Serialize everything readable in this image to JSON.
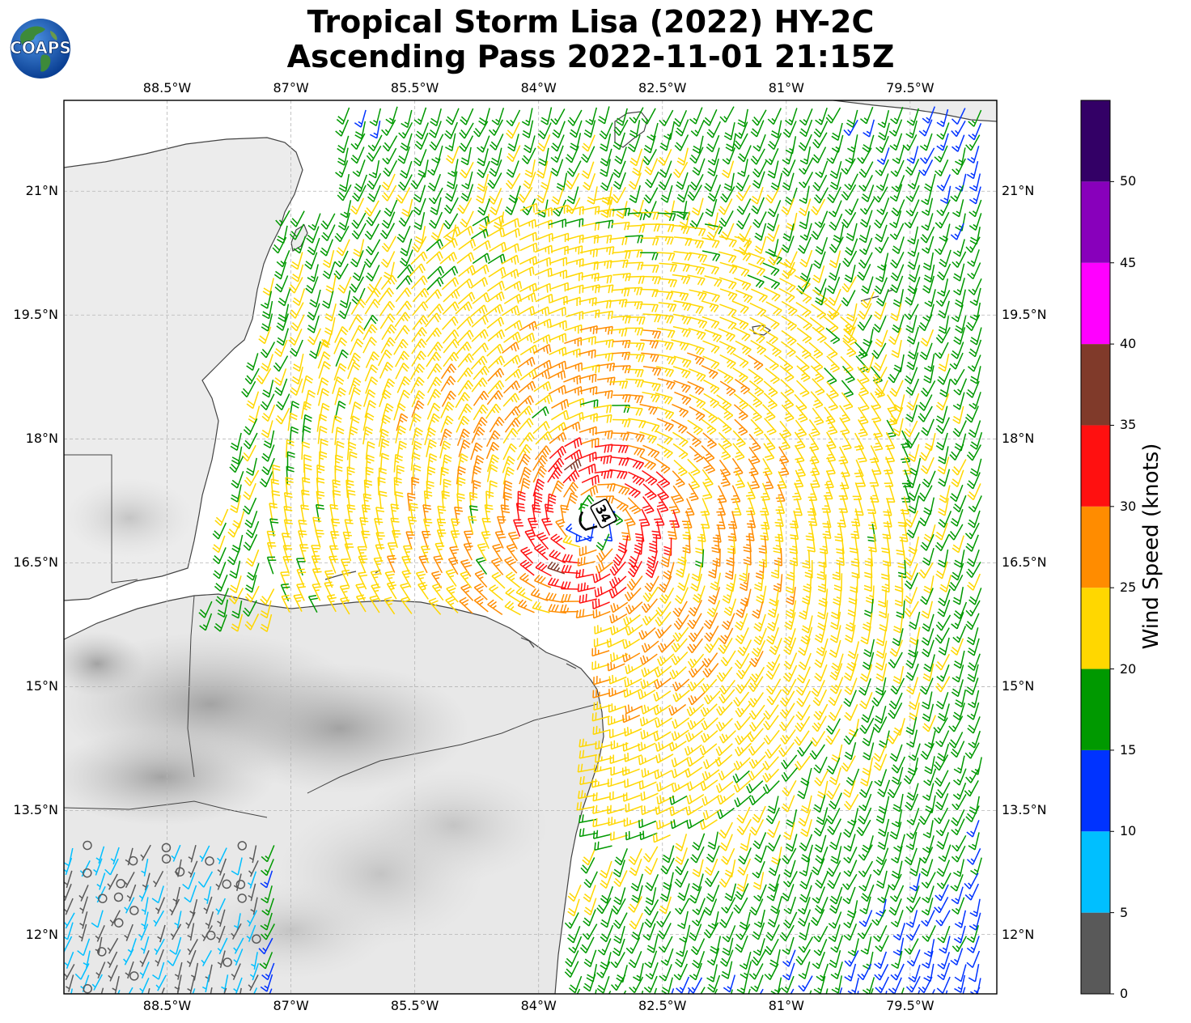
{
  "title_line1": "Tropical Storm Lisa (2022) HY-2C",
  "title_line2": "Ascending Pass 2022-11-01 21:15Z",
  "logo_text": "COAPS",
  "lon_labels": [
    "88.5°W",
    "87°W",
    "85.5°W",
    "84°W",
    "82.5°W",
    "81°W",
    "79.5°W"
  ],
  "lon_values": [
    -88.5,
    -87,
    -85.5,
    -84,
    -82.5,
    -81,
    -79.5
  ],
  "lat_labels": [
    "21°N",
    "19.5°N",
    "18°N",
    "16.5°N",
    "15°N",
    "13.5°N",
    "12°N"
  ],
  "lat_values": [
    21,
    19.5,
    18,
    16.5,
    15,
    13.5,
    12
  ],
  "map_extent": {
    "lon_min": -89.75,
    "lon_max": -78.45,
    "lat_min": 11.28,
    "lat_max": 22.1
  },
  "storm_center": {
    "lon": -83.35,
    "lat": 16.98,
    "label": "34"
  },
  "colorbar": {
    "title": "Wind Speed (knots)",
    "tick_labels": [
      "0",
      "5",
      "10",
      "15",
      "20",
      "25",
      "30",
      "35",
      "40",
      "45",
      "50"
    ],
    "range": [
      0,
      55
    ],
    "bins": [
      {
        "min": 0,
        "max": 5,
        "color": "#595959"
      },
      {
        "min": 5,
        "max": 10,
        "color": "#00bfff"
      },
      {
        "min": 10,
        "max": 15,
        "color": "#0033ff"
      },
      {
        "min": 15,
        "max": 20,
        "color": "#009900"
      },
      {
        "min": 20,
        "max": 25,
        "color": "#ffd700"
      },
      {
        "min": 25,
        "max": 30,
        "color": "#ff8c00"
      },
      {
        "min": 30,
        "max": 35,
        "color": "#ff1010"
      },
      {
        "min": 35,
        "max": 40,
        "color": "#803a2a"
      },
      {
        "min": 40,
        "max": 45,
        "color": "#ff00ff"
      },
      {
        "min": 45,
        "max": 50,
        "color": "#8800bb"
      },
      {
        "min": 50,
        "max": 55,
        "color": "#330066"
      }
    ]
  }
}
